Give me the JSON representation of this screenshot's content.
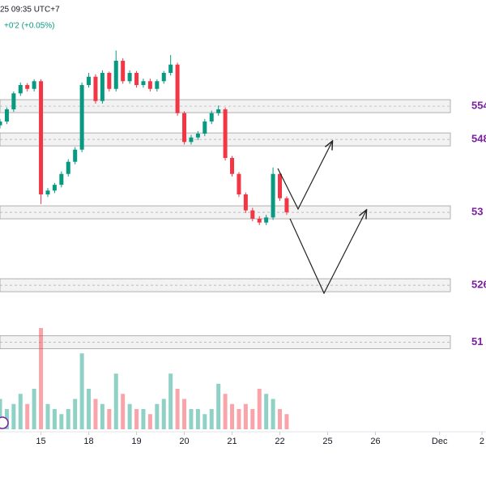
{
  "header": {
    "time": "25 09:35 UTC+7",
    "change": "+0'2 (+0.05%)"
  },
  "chart_data": {
    "type": "candlestick",
    "up_color": "#089981",
    "down_color": "#f23645",
    "xlim": [
      0,
      71.2
    ],
    "xticks": [
      {
        "value": 6,
        "label": "15"
      },
      {
        "value": 13,
        "label": "18"
      },
      {
        "value": 20,
        "label": "19"
      },
      {
        "value": 27,
        "label": "20"
      },
      {
        "value": 34,
        "label": "21"
      },
      {
        "value": 41,
        "label": "22"
      },
      {
        "value": 48,
        "label": "25"
      },
      {
        "value": 55,
        "label": "26"
      },
      {
        "value": 64.4,
        "label": "Dec"
      },
      {
        "value": 70.6,
        "label": "2"
      }
    ],
    "ylim": [
      5022,
      5706
    ],
    "volume_ylim": [
      0,
      100
    ],
    "open": [
      5510,
      5516,
      5535,
      5560,
      5573,
      5567,
      5579,
      5402,
      5408,
      5417,
      5434,
      5453,
      5472,
      5573,
      5586,
      5548,
      5592,
      5567,
      5611,
      5579,
      5592,
      5573,
      5579,
      5567,
      5579,
      5592,
      5605,
      5529,
      5484,
      5491,
      5497,
      5516,
      5529,
      5535,
      5459,
      5434,
      5402,
      5377,
      5364,
      5358,
      5366,
      5434,
      5396
    ],
    "high": [
      5520,
      5538,
      5563,
      5577,
      5576,
      5582,
      5582,
      5412,
      5420,
      5438,
      5457,
      5476,
      5577,
      5592,
      5590,
      5596,
      5594,
      5627,
      5615,
      5596,
      5595,
      5583,
      5583,
      5582,
      5595,
      5620,
      5608,
      5532,
      5495,
      5501,
      5520,
      5533,
      5541,
      5538,
      5462,
      5437,
      5405,
      5381,
      5368,
      5370,
      5444,
      5437,
      5399
    ],
    "low": [
      5505,
      5512,
      5531,
      5556,
      5563,
      5563,
      5387,
      5398,
      5404,
      5413,
      5430,
      5449,
      5468,
      5569,
      5544,
      5544,
      5563,
      5563,
      5575,
      5575,
      5569,
      5569,
      5563,
      5563,
      5575,
      5588,
      5525,
      5480,
      5480,
      5487,
      5493,
      5512,
      5525,
      5455,
      5430,
      5398,
      5373,
      5360,
      5354,
      5354,
      5362,
      5392,
      5370
    ],
    "close": [
      5516,
      5535,
      5560,
      5573,
      5567,
      5579,
      5402,
      5408,
      5417,
      5434,
      5453,
      5472,
      5573,
      5586,
      5548,
      5592,
      5567,
      5611,
      5579,
      5592,
      5573,
      5579,
      5567,
      5579,
      5592,
      5605,
      5529,
      5484,
      5491,
      5497,
      5516,
      5529,
      5535,
      5459,
      5434,
      5402,
      5377,
      5364,
      5358,
      5366,
      5434,
      5396,
      5374
    ],
    "volume": [
      30,
      20,
      25,
      35,
      25,
      40,
      100,
      25,
      20,
      15,
      20,
      30,
      75,
      40,
      30,
      25,
      20,
      55,
      35,
      25,
      20,
      20,
      15,
      25,
      30,
      55,
      40,
      30,
      20,
      20,
      15,
      20,
      45,
      35,
      25,
      20,
      25,
      20,
      40,
      35,
      30,
      20,
      15
    ],
    "zones": [
      {
        "label": "554",
        "value": 5540
      },
      {
        "label": "548",
        "value": 5488
      },
      {
        "label": "53",
        "value": 5374
      },
      {
        "label": "526",
        "value": 5260
      },
      {
        "label": "51",
        "value": 5171
      }
    ],
    "zone_color": "#7b1fa2"
  }
}
